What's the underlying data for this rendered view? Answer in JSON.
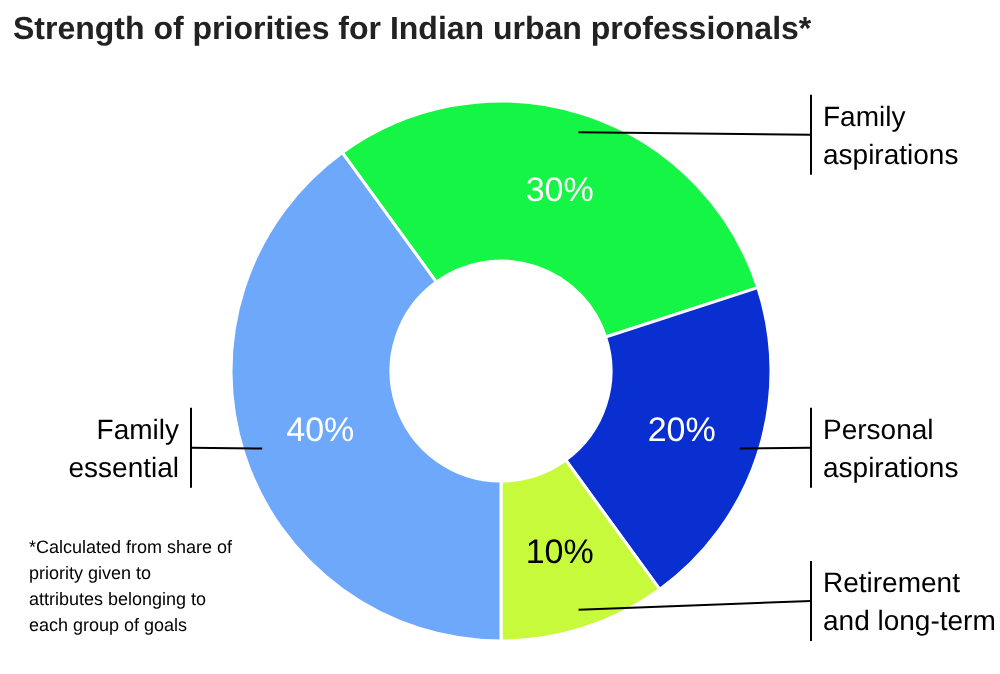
{
  "chart_data": {
    "type": "donut",
    "title": "Strength of priorities for Indian urban professionals*",
    "categories": [
      "Family aspirations",
      "Personal aspirations",
      "Retirement and long-term",
      "Family essential"
    ],
    "values": [
      30,
      20,
      10,
      40
    ],
    "value_labels": [
      "30%",
      "20%",
      "10%",
      "40%"
    ],
    "colors": [
      "#14f545",
      "#0a2fd0",
      "#c8fa3c",
      "#6ea8fa"
    ],
    "annotations": [
      "*Calculated from share of priority given to attributes belonging to each group of goals"
    ]
  }
}
